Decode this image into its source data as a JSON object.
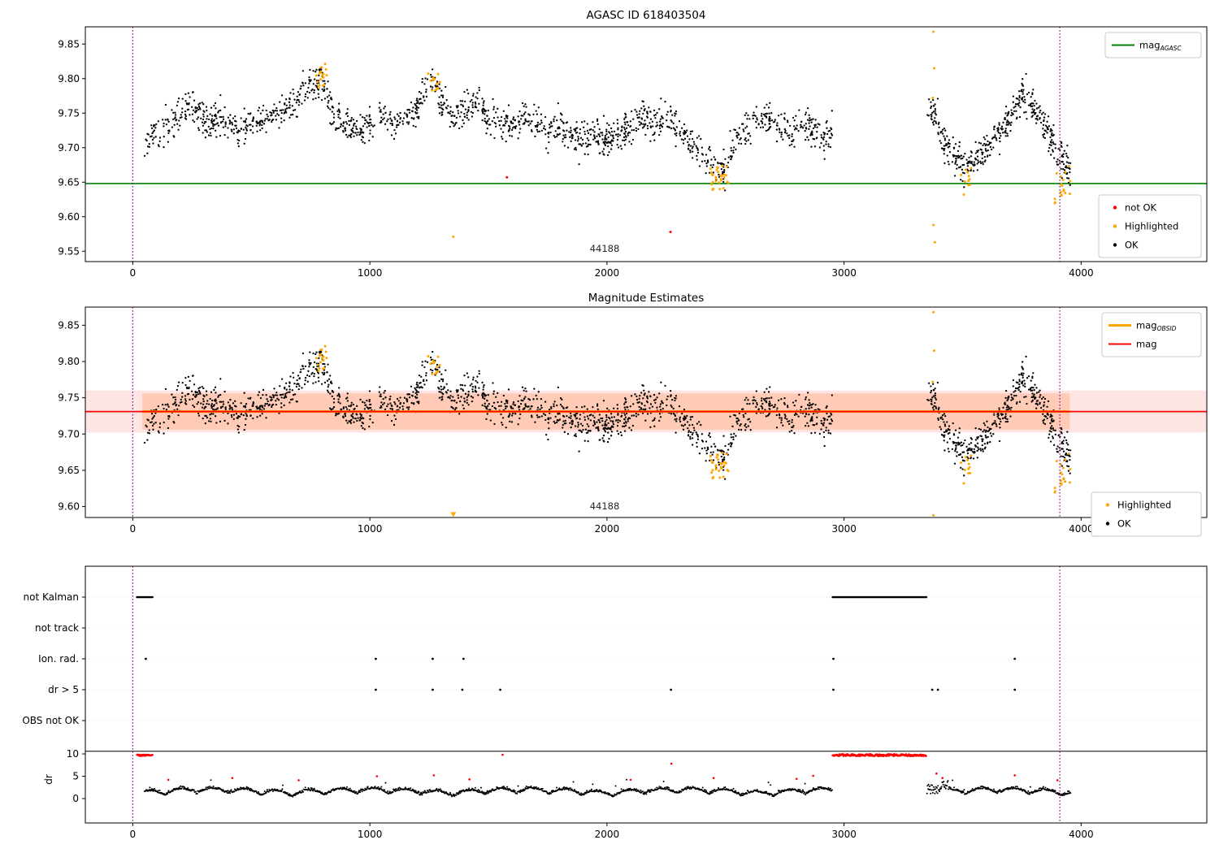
{
  "figure": {
    "background": "#ffffff"
  },
  "chart_data": [
    {
      "type": "scatter",
      "title": "AGASC ID 618403504",
      "xlim": [
        -200,
        4530
      ],
      "ylim": [
        9.535,
        9.875
      ],
      "xticks": [
        0,
        1000,
        2000,
        3000,
        4000
      ],
      "yticks": [
        9.85,
        9.8,
        9.75,
        9.7,
        9.65,
        9.6,
        9.55
      ],
      "legend_lines": [
        {
          "label": "mag",
          "sub": "AGASC",
          "color": "#008000",
          "lw": 2
        }
      ],
      "legend_markers": [
        {
          "label": "not OK",
          "color": "#ff0000"
        },
        {
          "label": "Highlighted",
          "color": "#ffa500"
        },
        {
          "label": "OK",
          "color": "#000000"
        }
      ],
      "hline": {
        "y": 9.648,
        "color": "#008000"
      },
      "vlines": {
        "x": [
          0,
          3910
        ],
        "color": "#800080",
        "style": "dotted"
      },
      "annotation": {
        "text": "44188",
        "x": 1990,
        "y": 9.551
      },
      "ok_series": {
        "color": "#000000",
        "noise": 0.012,
        "seed": 42,
        "segments": [
          [
            50,
            2950,
            1600
          ],
          [
            3350,
            3955,
            430
          ]
        ],
        "anchors": [
          [
            50,
            9.705
          ],
          [
            90,
            9.72
          ],
          [
            150,
            9.73
          ],
          [
            210,
            9.755
          ],
          [
            240,
            9.765
          ],
          [
            270,
            9.75
          ],
          [
            310,
            9.735
          ],
          [
            360,
            9.74
          ],
          [
            410,
            9.735
          ],
          [
            460,
            9.725
          ],
          [
            520,
            9.735
          ],
          [
            580,
            9.745
          ],
          [
            640,
            9.755
          ],
          [
            700,
            9.77
          ],
          [
            760,
            9.79
          ],
          [
            790,
            9.8
          ],
          [
            815,
            9.78
          ],
          [
            850,
            9.745
          ],
          [
            900,
            9.735
          ],
          [
            950,
            9.725
          ],
          [
            1000,
            9.735
          ],
          [
            1050,
            9.745
          ],
          [
            1100,
            9.735
          ],
          [
            1150,
            9.745
          ],
          [
            1200,
            9.76
          ],
          [
            1245,
            9.79
          ],
          [
            1270,
            9.8
          ],
          [
            1305,
            9.765
          ],
          [
            1350,
            9.745
          ],
          [
            1400,
            9.755
          ],
          [
            1450,
            9.765
          ],
          [
            1500,
            9.745
          ],
          [
            1550,
            9.735
          ],
          [
            1600,
            9.73
          ],
          [
            1650,
            9.74
          ],
          [
            1700,
            9.735
          ],
          [
            1750,
            9.72
          ],
          [
            1800,
            9.73
          ],
          [
            1850,
            9.72
          ],
          [
            1900,
            9.71
          ],
          [
            1950,
            9.72
          ],
          [
            2000,
            9.71
          ],
          [
            2050,
            9.72
          ],
          [
            2100,
            9.735
          ],
          [
            2150,
            9.745
          ],
          [
            2200,
            9.73
          ],
          [
            2250,
            9.745
          ],
          [
            2300,
            9.725
          ],
          [
            2350,
            9.71
          ],
          [
            2400,
            9.69
          ],
          [
            2450,
            9.675
          ],
          [
            2490,
            9.665
          ],
          [
            2530,
            9.7
          ],
          [
            2570,
            9.725
          ],
          [
            2620,
            9.735
          ],
          [
            2670,
            9.745
          ],
          [
            2720,
            9.735
          ],
          [
            2770,
            9.725
          ],
          [
            2820,
            9.735
          ],
          [
            2870,
            9.725
          ],
          [
            2920,
            9.715
          ],
          [
            2950,
            9.72
          ],
          [
            3350,
            9.735
          ],
          [
            3375,
            9.755
          ],
          [
            3410,
            9.72
          ],
          [
            3450,
            9.695
          ],
          [
            3500,
            9.67
          ],
          [
            3550,
            9.68
          ],
          [
            3600,
            9.7
          ],
          [
            3650,
            9.72
          ],
          [
            3700,
            9.745
          ],
          [
            3745,
            9.775
          ],
          [
            3790,
            9.765
          ],
          [
            3840,
            9.735
          ],
          [
            3890,
            9.7
          ],
          [
            3950,
            9.665
          ]
        ]
      },
      "highlighted_series": {
        "color": "#ffa500",
        "seed": 11,
        "clusters": [
          [
            770,
            826,
            9.785,
            9.822,
            18
          ],
          [
            1242,
            1296,
            9.782,
            9.812,
            12
          ],
          [
            2436,
            2514,
            9.636,
            9.674,
            30
          ],
          [
            3488,
            3546,
            9.646,
            9.672,
            10
          ],
          [
            3886,
            3954,
            9.616,
            9.674,
            18
          ]
        ],
        "points": [
          [
            1352,
            9.571
          ],
          [
            3374,
            9.772
          ],
          [
            3377,
            9.868
          ],
          [
            3380,
            9.815
          ],
          [
            3383,
            9.563
          ],
          [
            3377,
            9.588
          ],
          [
            3505,
            9.632
          ]
        ]
      },
      "not_ok_points": [
        [
          1578,
          9.657
        ],
        [
          2268,
          9.578
        ]
      ]
    },
    {
      "type": "scatter",
      "title": "Magnitude Estimates",
      "xlim": [
        -200,
        4530
      ],
      "ylim": [
        9.585,
        9.875
      ],
      "xticks": [
        0,
        1000,
        2000,
        3000,
        4000
      ],
      "yticks": [
        9.85,
        9.8,
        9.75,
        9.7,
        9.65,
        9.6
      ],
      "legend_lines": [
        {
          "label": "mag",
          "sub": "OBSID",
          "color": "#ffa500",
          "lw": 3
        },
        {
          "label": "mag",
          "sub": "",
          "color": "#ff0000",
          "lw": 2
        }
      ],
      "legend_markers": [
        {
          "label": "Highlighted",
          "color": "#ffa500"
        },
        {
          "label": "OK",
          "color": "#000000"
        }
      ],
      "mag_line": {
        "y": 9.731,
        "color": "#ff0000"
      },
      "obsid_line": {
        "y": 9.731,
        "x0": 40,
        "x1": 3952,
        "color": "#ffa500"
      },
      "bands": [
        {
          "x0": -200,
          "x1": 4530,
          "y0": 9.702,
          "y1": 9.76,
          "color": "#ff6b6b",
          "opacity": 0.18
        },
        {
          "x0": 40,
          "x1": 3952,
          "y0": 9.706,
          "y1": 9.756,
          "color": "#ff8c42",
          "opacity": 0.28
        }
      ],
      "vlines": {
        "x": [
          0,
          3910
        ],
        "color": "#800080",
        "style": "dotted"
      },
      "annotation": {
        "text": "44188",
        "x": 1990,
        "y": 9.598
      },
      "series_ref": 0,
      "clip_markers": [
        1352
      ]
    },
    {
      "type": "flags",
      "xlim": [
        -200,
        4530
      ],
      "xticks": [
        0,
        1000,
        2000,
        3000,
        4000
      ],
      "rows": [
        "not Kalman",
        "not track",
        "Ion. rad.",
        "dr > 5",
        "OBS not OK"
      ],
      "ylabel": "dr",
      "dr_ticks": [
        10,
        5,
        0
      ],
      "separator_dr": 10.6,
      "vlines": {
        "x": [
          0,
          3910
        ],
        "color": "#800080",
        "style": "dotted"
      },
      "flag_segments": {
        "not Kalman": [
          [
            18,
            85
          ],
          [
            2952,
            3348
          ]
        ]
      },
      "flag_points": {
        "Ion. rad.": [
          55,
          1025,
          1265,
          1395,
          2955,
          3720
        ],
        "dr > 5": [
          1025,
          1265,
          1390,
          1550,
          2270,
          2955,
          3372,
          3396,
          3720
        ]
      },
      "dr_series": {
        "color": "#000000",
        "seed": 7,
        "step": 2.2,
        "segments": [
          [
            50,
            2950
          ],
          [
            3350,
            3955
          ]
        ]
      },
      "dr_red_ranges": [
        [
          18,
          85,
          9.55,
          9.85
        ],
        [
          2952,
          3348,
          9.5,
          9.95
        ]
      ],
      "dr_red_points": [
        [
          150,
          4.2
        ],
        [
          420,
          4.6
        ],
        [
          700,
          4.1
        ],
        [
          1030,
          5.0
        ],
        [
          1270,
          5.2
        ],
        [
          1420,
          4.3
        ],
        [
          1560,
          9.8
        ],
        [
          2100,
          4.2
        ],
        [
          2272,
          7.8
        ],
        [
          2450,
          4.6
        ],
        [
          2800,
          4.4
        ],
        [
          2870,
          5.1
        ],
        [
          3390,
          5.6
        ],
        [
          3415,
          4.6
        ],
        [
          3720,
          5.2
        ],
        [
          3900,
          4.1
        ]
      ]
    }
  ]
}
